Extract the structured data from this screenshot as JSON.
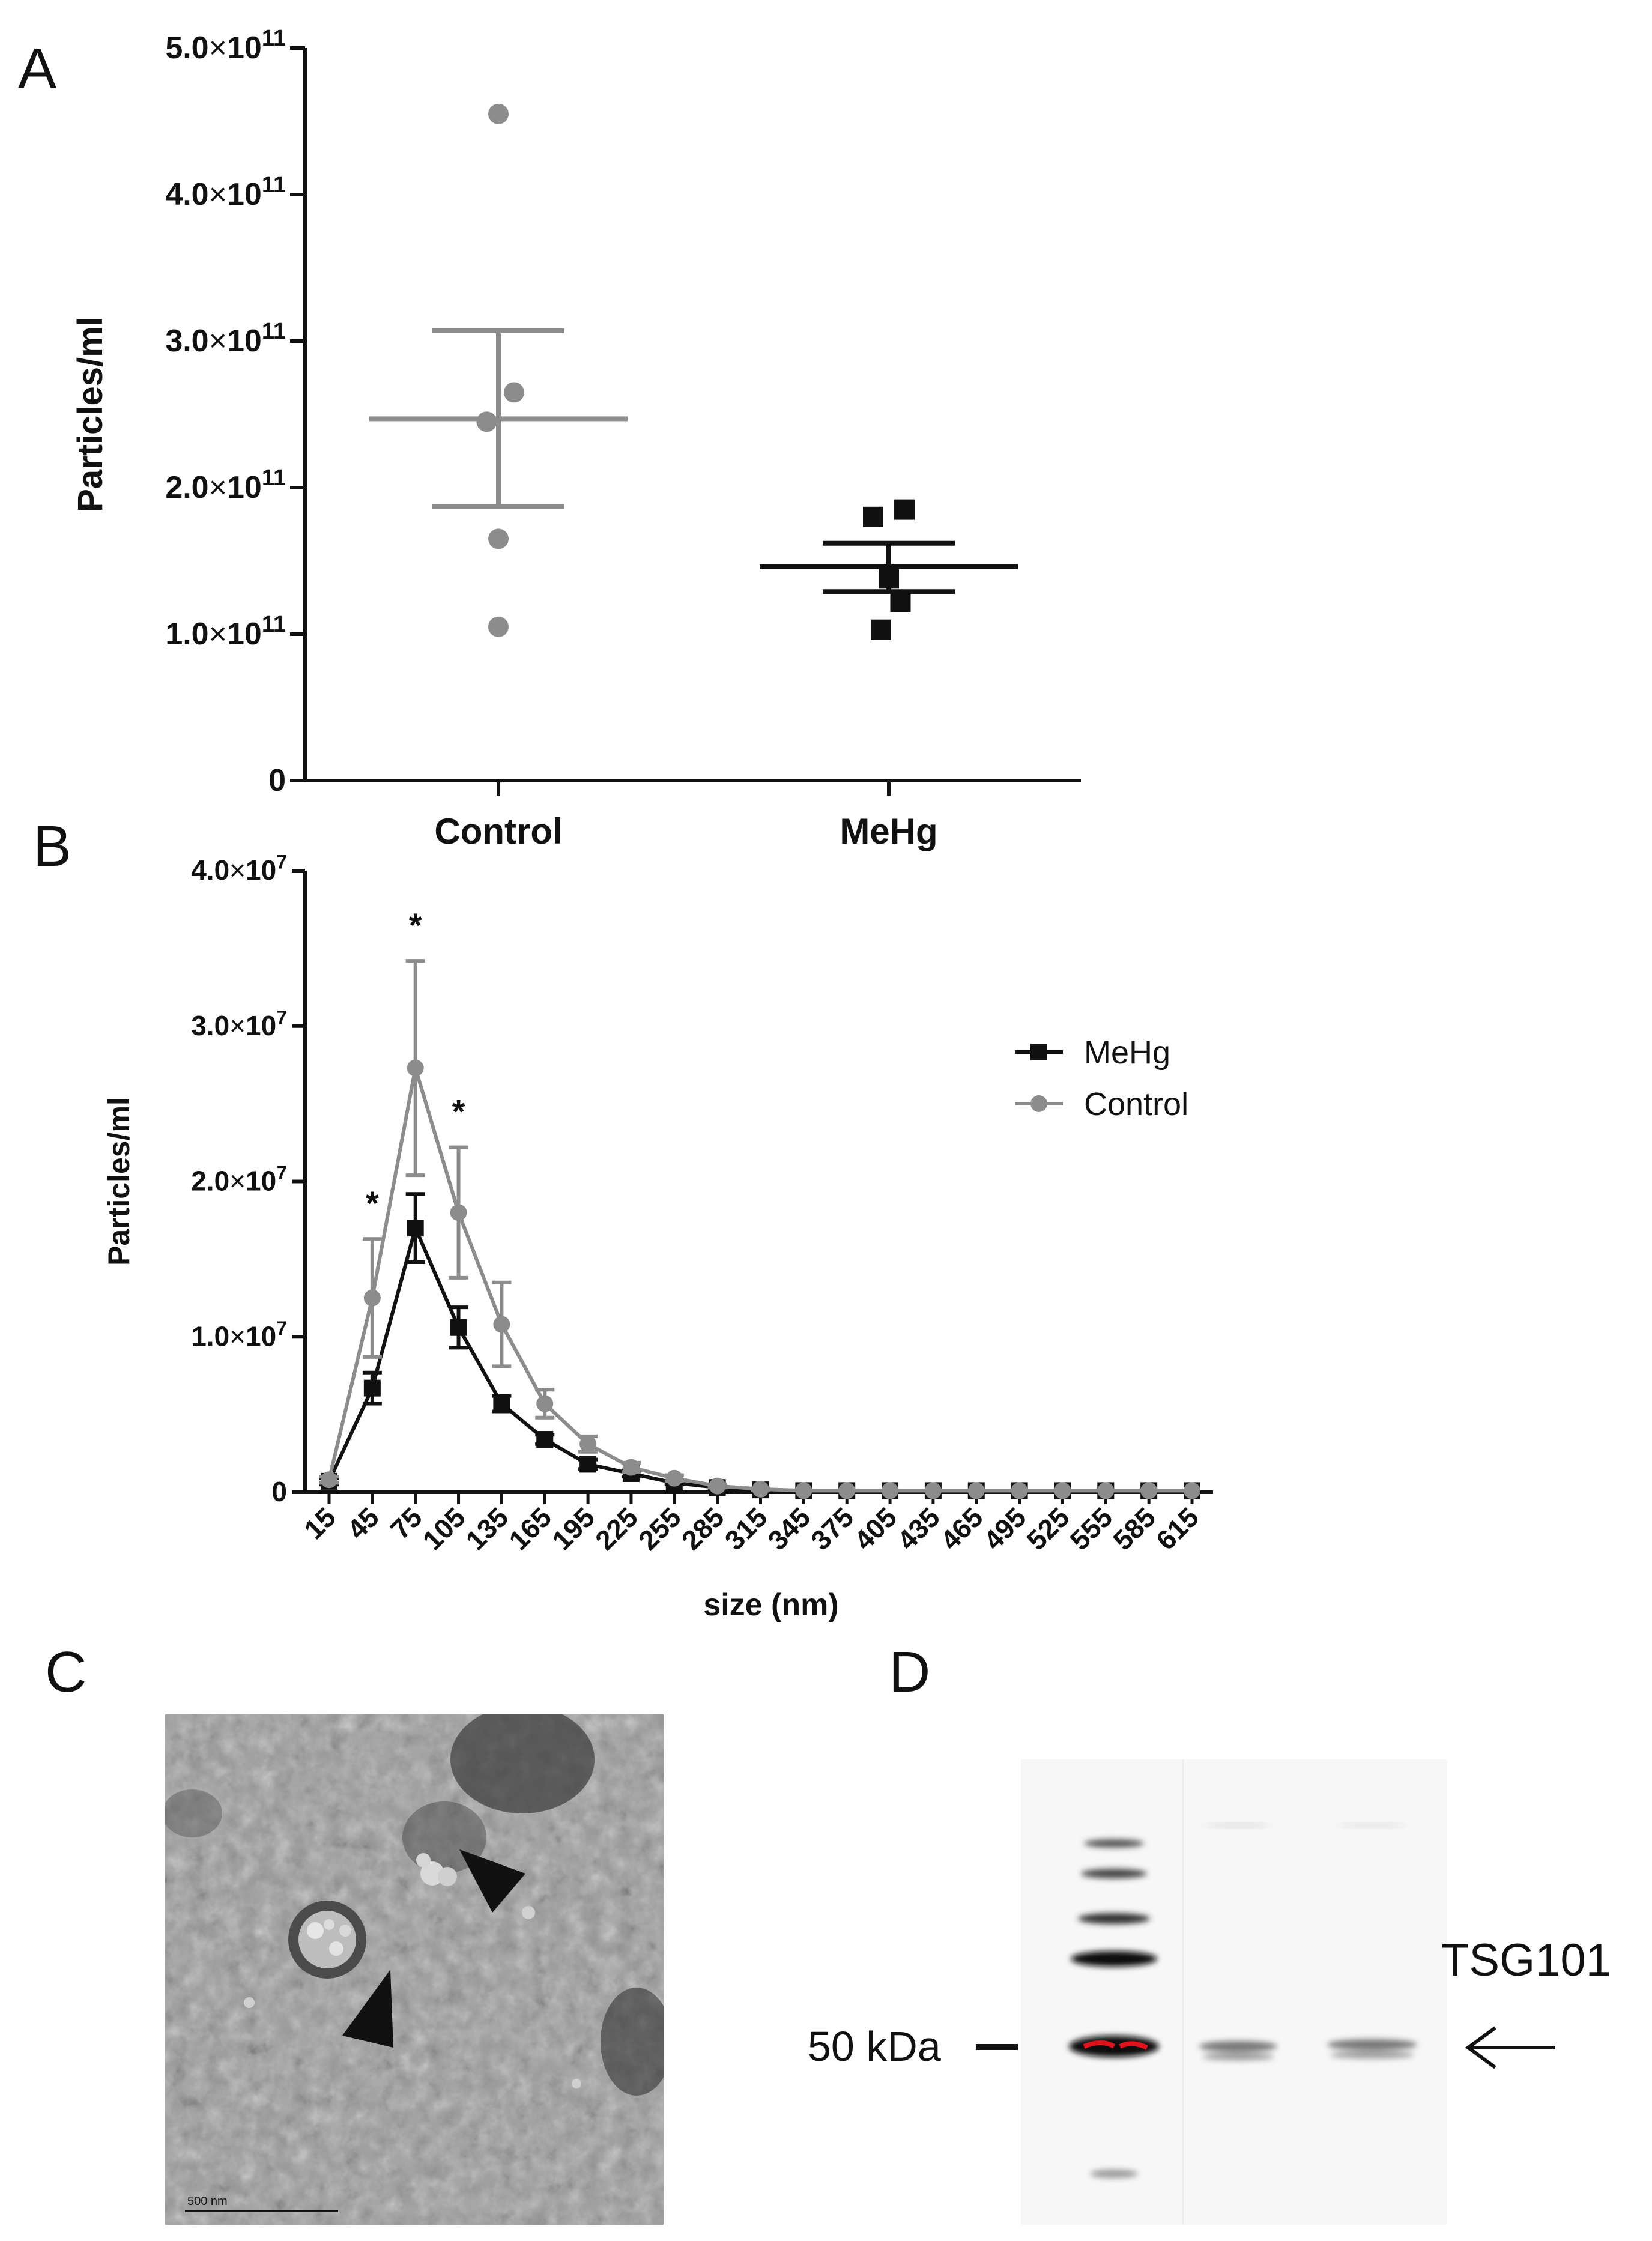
{
  "panels": {
    "a": "A",
    "b": "B",
    "c": "C",
    "d": "D"
  },
  "colors": {
    "control": "#8c8c8c",
    "mehg": "#111111",
    "axis": "#111111"
  },
  "chart_data": [
    {
      "panel": "A",
      "type": "scatter",
      "ylabel": "Particles/ml",
      "xlabel": "",
      "categories": [
        "Control",
        "MeHg"
      ],
      "ylim": [
        0,
        500000000000.0
      ],
      "yticks": [
        {
          "value": 0,
          "label": "0"
        },
        {
          "value": 100000000000.0,
          "mantissa": "1.0",
          "exp": "11"
        },
        {
          "value": 200000000000.0,
          "mantissa": "2.0",
          "exp": "11"
        },
        {
          "value": 300000000000.0,
          "mantissa": "3.0",
          "exp": "11"
        },
        {
          "value": 400000000000.0,
          "mantissa": "4.0",
          "exp": "11"
        },
        {
          "value": 500000000000.0,
          "mantissa": "5.0",
          "exp": "11"
        }
      ],
      "groups": [
        {
          "category": "Control",
          "marker": "circle",
          "points": [
            455000000000.0,
            265000000000.0,
            245000000000.0,
            165000000000.0,
            105000000000.0
          ],
          "offsets": [
            0,
            0.04,
            -0.03,
            0,
            0
          ],
          "mean": 247000000000.0,
          "sem_low": 187000000000.0,
          "sem_high": 307000000000.0
        },
        {
          "category": "MeHg",
          "marker": "square",
          "points": [
            185000000000.0,
            180000000000.0,
            138000000000.0,
            122000000000.0,
            103000000000.0
          ],
          "offsets": [
            0.04,
            -0.04,
            0,
            0.03,
            -0.02
          ],
          "mean": 146000000000.0,
          "sem_low": 129000000000.0,
          "sem_high": 162000000000.0
        }
      ]
    },
    {
      "panel": "B",
      "type": "line",
      "ylabel": "Particles/ml",
      "xlabel": "size (nm)",
      "x": [
        15,
        45,
        75,
        105,
        135,
        165,
        195,
        225,
        255,
        285,
        315,
        345,
        375,
        405,
        435,
        465,
        495,
        525,
        555,
        585,
        615
      ],
      "ylim": [
        0,
        40000000.0
      ],
      "yticks": [
        {
          "value": 0,
          "label": "0"
        },
        {
          "value": 10000000.0,
          "mantissa": "1.0",
          "exp": "7"
        },
        {
          "value": 20000000.0,
          "mantissa": "2.0",
          "exp": "7"
        },
        {
          "value": 30000000.0,
          "mantissa": "3.0",
          "exp": "7"
        },
        {
          "value": 40000000.0,
          "mantissa": "4.0",
          "exp": "7"
        }
      ],
      "series": [
        {
          "name": "MeHg",
          "marker": "square",
          "values": [
            700000.0,
            6700000.0,
            17000000.0,
            10600000.0,
            5700000.0,
            3400000.0,
            1800000.0,
            1200000.0,
            600000.0,
            300000.0,
            150000.0,
            100000.0,
            100000.0,
            100000.0,
            100000.0,
            100000.0,
            100000.0,
            100000.0,
            100000.0,
            100000.0,
            100000.0
          ],
          "err": [
            200000.0,
            1000000.0,
            2200000.0,
            1300000.0,
            500000.0,
            300000.0,
            300000.0,
            200000.0,
            100000.0,
            100000.0,
            50000.0,
            0,
            0,
            0,
            0,
            0,
            0,
            0,
            0,
            0,
            0
          ]
        },
        {
          "name": "Control",
          "marker": "circle",
          "values": [
            800000.0,
            12500000.0,
            27300000.0,
            18000000.0,
            10800000.0,
            5700000.0,
            3100000.0,
            1600000.0,
            900000.0,
            400000.0,
            200000.0,
            100000.0,
            100000.0,
            100000.0,
            100000.0,
            100000.0,
            100000.0,
            100000.0,
            100000.0,
            100000.0,
            100000.0
          ],
          "err": [
            200000.0,
            3800000.0,
            6900000.0,
            4200000.0,
            2700000.0,
            900000.0,
            500000.0,
            300000.0,
            200000.0,
            100000.0,
            50000.0,
            0,
            0,
            0,
            0,
            0,
            0,
            0,
            0,
            0,
            0
          ]
        }
      ],
      "annotations": [
        {
          "text": "*",
          "x": 45
        },
        {
          "text": "*",
          "x": 75
        },
        {
          "text": "*",
          "x": 105
        }
      ],
      "legend_placement": "top-right"
    }
  ],
  "tem": {
    "scale_bar_label": "500 nm"
  },
  "blot": {
    "marker_label": "50 kDa",
    "protein_label": "TSG101"
  }
}
